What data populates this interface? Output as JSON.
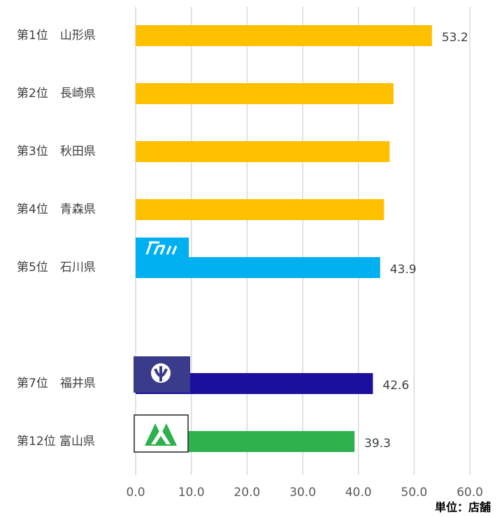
{
  "chart_data": {
    "type": "bar",
    "orientation": "horizontal",
    "categories": [
      "第1位　山形県",
      "第2位　長崎県",
      "第3位　秋田県",
      "第4位　青森県",
      "第5位　石川県",
      null,
      "第7位　福井県",
      "第12位 富山県"
    ],
    "values": [
      53.2,
      46.3,
      45.6,
      44.6,
      43.9,
      null,
      42.6,
      39.3
    ],
    "value_labels": [
      "53.2",
      null,
      null,
      null,
      "43.9",
      null,
      "42.6",
      "39.3"
    ],
    "colors": [
      "#FFC000",
      "#FFC000",
      "#FFC000",
      "#FFC000",
      "#00B0F0",
      null,
      "#1B0F9E",
      "#2EB04D"
    ],
    "xlim": [
      0,
      60
    ],
    "xticks": [
      {
        "value": 0,
        "label": "0.0"
      },
      {
        "value": 10,
        "label": "10.0"
      },
      {
        "value": 20,
        "label": "20.0"
      },
      {
        "value": 30,
        "label": "30.0"
      },
      {
        "value": 40,
        "label": "40.0"
      },
      {
        "value": 50,
        "label": "50.0"
      },
      {
        "value": 60,
        "label": "60.0"
      }
    ],
    "grid": true,
    "unit_label": "単位：店舗"
  }
}
